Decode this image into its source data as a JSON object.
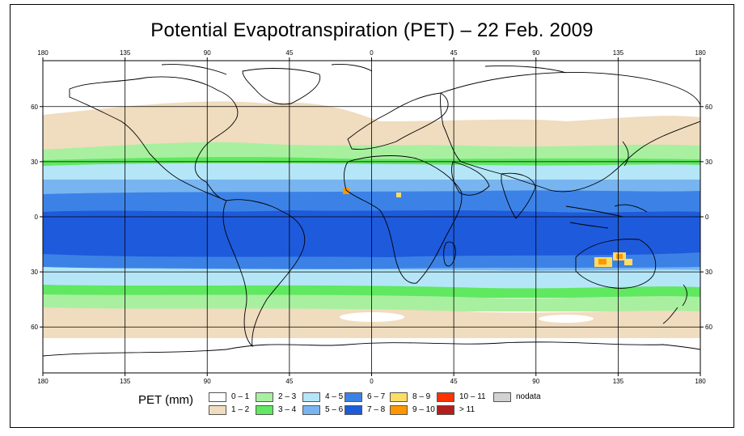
{
  "title": "Potential Evapotranspiration (PET) – 22 Feb. 2009",
  "map": {
    "lon_labels": [
      "180",
      "135",
      "90",
      "45",
      "0",
      "45",
      "90",
      "135",
      "180"
    ],
    "lat_labels": [
      "60",
      "30",
      "0",
      "30",
      "60"
    ],
    "grid_lon_deg": [
      -180,
      -135,
      -90,
      -45,
      0,
      45,
      90,
      135,
      180
    ],
    "grid_lat_deg": [
      60,
      30,
      0,
      -30,
      -60
    ],
    "lat_extent_deg": [
      -85,
      85
    ]
  },
  "legend": {
    "title": "PET (mm)",
    "classes": [
      {
        "label": "0 – 1",
        "color": "#ffffff"
      },
      {
        "label": "1 – 2",
        "color": "#f0dcbe"
      },
      {
        "label": "2 – 3",
        "color": "#a8f0a0"
      },
      {
        "label": "3 – 4",
        "color": "#60e860"
      },
      {
        "label": "4 – 5",
        "color": "#b4e6f8"
      },
      {
        "label": "5 – 6",
        "color": "#78b4f0"
      },
      {
        "label": "6 – 7",
        "color": "#3c82e6"
      },
      {
        "label": "7 – 8",
        "color": "#1e5adc"
      },
      {
        "label": "8 – 9",
        "color": "#ffdc64"
      },
      {
        "label": "9 – 10",
        "color": "#ff9600"
      },
      {
        "label": "10 – 11",
        "color": "#ff3200"
      },
      {
        "label": "> 11",
        "color": "#b41e1e"
      },
      {
        "label": "nodata",
        "color": "#d2d2d2"
      }
    ]
  }
}
